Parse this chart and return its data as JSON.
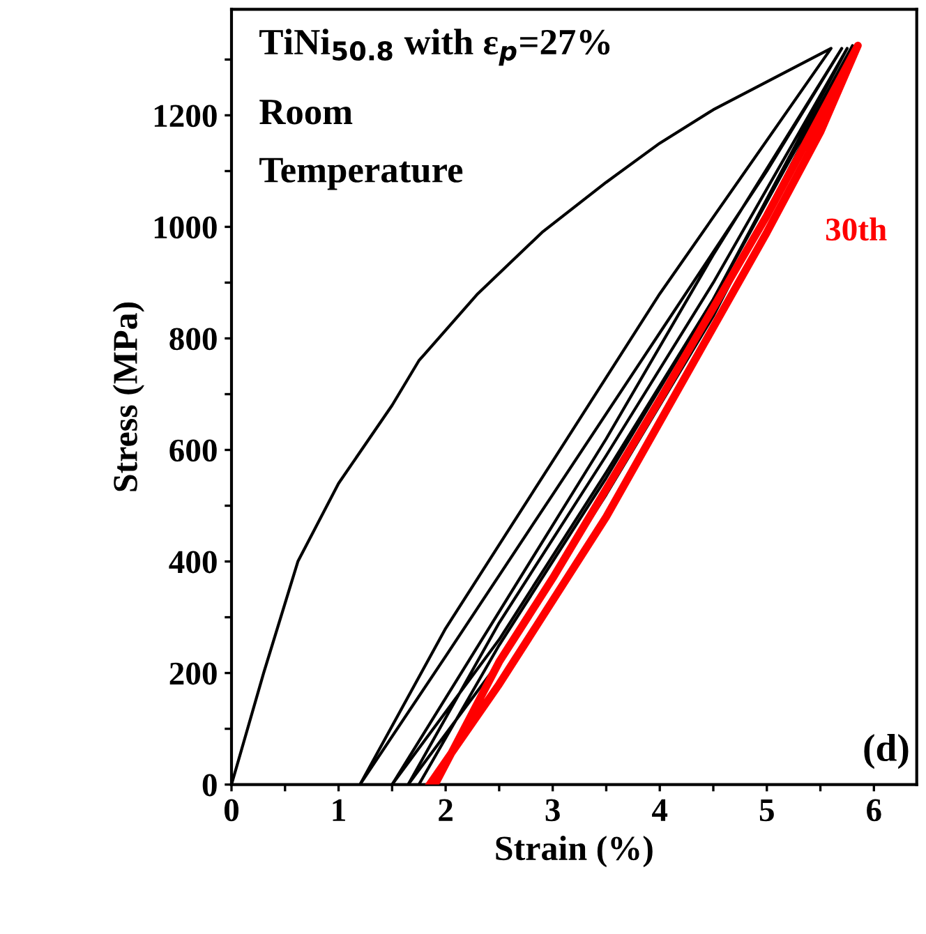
{
  "chart_data": {
    "type": "line",
    "xlabel": "Strain (%)",
    "ylabel": "Stress (MPa)",
    "xlim": [
      0,
      6.4
    ],
    "ylim": [
      0,
      1390
    ],
    "xticks": [
      0,
      {
        "value": 0.5,
        "label": null
      },
      1,
      {
        "value": 1.5,
        "label": null
      },
      2,
      {
        "value": 2.5,
        "label": null
      },
      3,
      {
        "value": 3.5,
        "label": null
      },
      4,
      {
        "value": 4.5,
        "label": null
      },
      5,
      {
        "value": 5.5,
        "label": null
      },
      6
    ],
    "yticks": [
      0,
      {
        "value": 100,
        "label": null
      },
      200,
      {
        "value": 300,
        "label": null
      },
      400,
      {
        "value": 500,
        "label": null
      },
      600,
      {
        "value": 700,
        "label": null
      },
      800,
      {
        "value": 900,
        "label": null
      },
      1000,
      {
        "value": 1100,
        "label": null
      },
      1200,
      {
        "value": 1300,
        "label": null
      }
    ],
    "grid": false,
    "legend": false,
    "marker": "none",
    "line_style": "solid",
    "annotations": [
      "TiNi$_{50.8}$ with ε$_{p}$=27%",
      "Room",
      "Temperature",
      "(d)"
    ],
    "series": [
      {
        "color": "#000000",
        "x": [
          0,
          0.3,
          0.62,
          1,
          1.5,
          1.75,
          2.3,
          2.9,
          3.5,
          4,
          4.5,
          5,
          5.6,
          4,
          3,
          2,
          1.2
        ],
        "values": [
          0,
          200,
          400,
          540,
          680,
          760,
          880,
          990,
          1080,
          1150,
          1210,
          1260,
          1320,
          880,
          580,
          280,
          0
        ]
      },
      {
        "color": "#000000",
        "x": [
          1.2,
          2,
          3,
          4,
          5,
          5.7,
          4.5,
          3.5,
          2.5,
          1.5
        ],
        "values": [
          0,
          230,
          520,
          810,
          1100,
          1320,
          950,
          620,
          310,
          0
        ]
      },
      {
        "color": "#000000",
        "x": [
          1.5,
          2.5,
          3.5,
          4.5,
          5.75,
          4.5,
          3.5,
          2.5,
          1.65
        ],
        "values": [
          0,
          260,
          560,
          870,
          1320,
          900,
          590,
          290,
          0
        ]
      },
      {
        "color": "#000000",
        "x": [
          1.65,
          2.5,
          3.5,
          4.5,
          5.8,
          4.5,
          3.5,
          2.5,
          1.75
        ],
        "values": [
          0,
          220,
          520,
          840,
          1325,
          870,
          550,
          250,
          0
        ]
      },
      {
        "name": "30th",
        "color": "#ff0000",
        "x": [
          1.85,
          2.5,
          3,
          3.5,
          4,
          4.5,
          5,
          5.5,
          5.85,
          5,
          4,
          3,
          2.5,
          1.9
        ],
        "values": [
          0,
          180,
          330,
          480,
          650,
          820,
          990,
          1170,
          1325,
          1020,
          690,
          370,
          220,
          0
        ]
      }
    ]
  }
}
